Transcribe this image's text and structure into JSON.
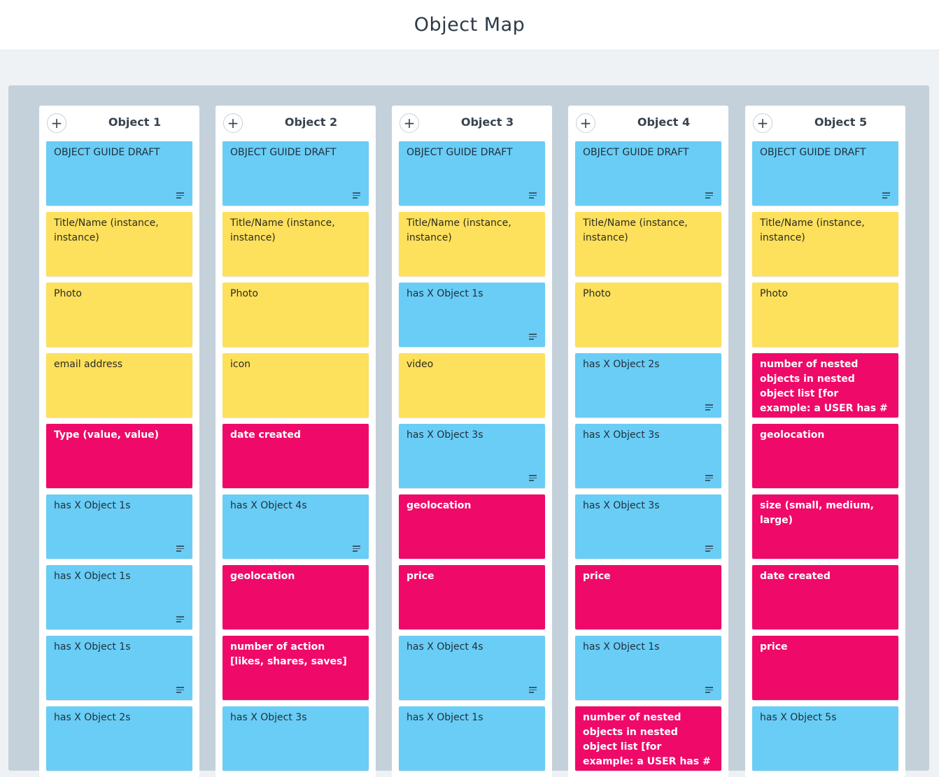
{
  "page": {
    "title": "Object Map"
  },
  "colors": {
    "blue": "#69cdf6",
    "yellow": "#fde05c",
    "pink": "#ef0a69"
  },
  "columns": [
    {
      "title": "Object 1",
      "cards": [
        {
          "text": "OBJECT GUIDE DRAFT",
          "color": "blue",
          "has_description": true
        },
        {
          "text": "Title/Name (instance, instance)",
          "color": "yellow",
          "has_description": false
        },
        {
          "text": "Photo",
          "color": "yellow",
          "has_description": false
        },
        {
          "text": "email address",
          "color": "yellow",
          "has_description": false
        },
        {
          "text": "Type (value, value)",
          "color": "pink",
          "has_description": false
        },
        {
          "text": "has X Object 1s",
          "color": "blue",
          "has_description": true
        },
        {
          "text": "has X Object 1s",
          "color": "blue",
          "has_description": true
        },
        {
          "text": "has X Object 1s",
          "color": "blue",
          "has_description": true
        },
        {
          "text": "has X Object 2s",
          "color": "blue",
          "has_description": false
        }
      ]
    },
    {
      "title": "Object 2",
      "cards": [
        {
          "text": "OBJECT GUIDE DRAFT",
          "color": "blue",
          "has_description": true
        },
        {
          "text": "Title/Name (instance, instance)",
          "color": "yellow",
          "has_description": false
        },
        {
          "text": "Photo",
          "color": "yellow",
          "has_description": false
        },
        {
          "text": "icon",
          "color": "yellow",
          "has_description": false
        },
        {
          "text": "date created",
          "color": "pink",
          "has_description": false
        },
        {
          "text": "has X Object 4s",
          "color": "blue",
          "has_description": true
        },
        {
          "text": "geolocation",
          "color": "pink",
          "has_description": false
        },
        {
          "text": "number of action [likes, shares, saves]",
          "color": "pink",
          "has_description": false
        },
        {
          "text": "has X Object 3s",
          "color": "blue",
          "has_description": false
        }
      ]
    },
    {
      "title": "Object 3",
      "cards": [
        {
          "text": "OBJECT GUIDE DRAFT",
          "color": "blue",
          "has_description": true
        },
        {
          "text": "Title/Name (instance, instance)",
          "color": "yellow",
          "has_description": false
        },
        {
          "text": "has X Object 1s",
          "color": "blue",
          "has_description": true
        },
        {
          "text": "video",
          "color": "yellow",
          "has_description": false
        },
        {
          "text": "has X Object 3s",
          "color": "blue",
          "has_description": true
        },
        {
          "text": "geolocation",
          "color": "pink",
          "has_description": false
        },
        {
          "text": "price",
          "color": "pink",
          "has_description": false
        },
        {
          "text": "has X Object 4s",
          "color": "blue",
          "has_description": true
        },
        {
          "text": "has X Object 1s",
          "color": "blue",
          "has_description": false
        }
      ]
    },
    {
      "title": "Object 4",
      "cards": [
        {
          "text": "OBJECT GUIDE DRAFT",
          "color": "blue",
          "has_description": true
        },
        {
          "text": "Title/Name (instance, instance)",
          "color": "yellow",
          "has_description": false
        },
        {
          "text": "Photo",
          "color": "yellow",
          "has_description": false
        },
        {
          "text": "has X Object 2s",
          "color": "blue",
          "has_description": true
        },
        {
          "text": "has X Object 3s",
          "color": "blue",
          "has_description": true
        },
        {
          "text": "has X Object 3s",
          "color": "blue",
          "has_description": true
        },
        {
          "text": "price",
          "color": "pink",
          "has_description": false
        },
        {
          "text": "has X Object 1s",
          "color": "blue",
          "has_description": true
        },
        {
          "text": "number of nested objects in nested object list [for example: a USER has # of POSTS]",
          "color": "pink",
          "has_description": false
        }
      ]
    },
    {
      "title": "Object 5",
      "cards": [
        {
          "text": "OBJECT GUIDE DRAFT",
          "color": "blue",
          "has_description": true
        },
        {
          "text": "Title/Name (instance, instance)",
          "color": "yellow",
          "has_description": false
        },
        {
          "text": "Photo",
          "color": "yellow",
          "has_description": false
        },
        {
          "text": "number of nested objects in nested object list [for example: a USER has # of POSTS]",
          "color": "pink",
          "has_description": false
        },
        {
          "text": "geolocation",
          "color": "pink",
          "has_description": false
        },
        {
          "text": "size (small, medium, large)",
          "color": "pink",
          "has_description": false
        },
        {
          "text": "date created",
          "color": "pink",
          "has_description": false
        },
        {
          "text": "price",
          "color": "pink",
          "has_description": false
        },
        {
          "text": "has X Object 5s",
          "color": "blue",
          "has_description": false
        }
      ]
    }
  ]
}
